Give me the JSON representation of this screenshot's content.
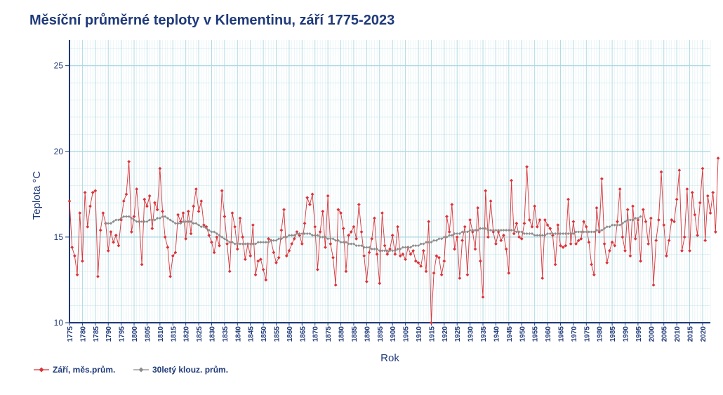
{
  "chart_data": {
    "type": "line",
    "title": "Měsíční průměrné teploty v Klementinu, září 1775-2023",
    "xlabel": "Rok",
    "ylabel": "Teplota °C",
    "xlim": [
      1775,
      2023
    ],
    "ylim": [
      10,
      26.5
    ],
    "y_ticks": [
      10,
      15,
      20,
      25
    ],
    "x_ticks_step": 5,
    "grid": true,
    "legend_position": "bottom-left",
    "colors": {
      "title": "#1f3a7a",
      "axis": "#1f3a7a",
      "grid": "#a9d7df",
      "series1": "#d9343a",
      "series2": "#8c8c8c"
    },
    "series": [
      {
        "name": "Září, měs.prům.",
        "start_year": 1775,
        "values": [
          17.1,
          14.4,
          13.9,
          12.8,
          16.4,
          13.6,
          17.6,
          15.6,
          16.8,
          17.6,
          17.7,
          12.7,
          15.4,
          16.4,
          15.8,
          14.2,
          15.3,
          14.7,
          15.1,
          14.5,
          16.0,
          17.1,
          17.5,
          19.4,
          15.3,
          16.2,
          17.8,
          15.9,
          13.4,
          17.2,
          16.8,
          17.4,
          15.5,
          17.0,
          16.6,
          19.0,
          16.5,
          15.0,
          14.4,
          12.7,
          13.9,
          14.1,
          16.3,
          15.9,
          16.4,
          14.9,
          16.5,
          15.2,
          16.8,
          17.8,
          16.5,
          17.1,
          15.7,
          15.6,
          15.1,
          14.7,
          14.1,
          15.0,
          14.5,
          17.7,
          16.2,
          14.6,
          13.0,
          16.4,
          15.6,
          14.3,
          16.1,
          15.0,
          13.7,
          14.6,
          13.9,
          15.7,
          12.8,
          13.6,
          13.7,
          13.1,
          12.5,
          14.9,
          14.8,
          14.1,
          13.5,
          13.8,
          15.4,
          16.6,
          13.9,
          14.2,
          14.6,
          14.9,
          15.3,
          15.1,
          14.6,
          15.8,
          17.3,
          16.9,
          17.5,
          15.6,
          13.1,
          15.3,
          16.5,
          14.4,
          17.4,
          14.6,
          13.8,
          12.2,
          16.6,
          16.4,
          15.5,
          13.0,
          15.1,
          15.3,
          15.6,
          14.9,
          16.9,
          15.3,
          13.9,
          12.4,
          14.1,
          14.9,
          16.1,
          14.0,
          12.3,
          16.4,
          14.5,
          14.0,
          14.3,
          15.1,
          14.0,
          15.6,
          13.9,
          14.0,
          13.7,
          14.4,
          14.0,
          14.2,
          13.6,
          13.5,
          13.3,
          14.2,
          13.0,
          15.9,
          10.0,
          12.9,
          13.9,
          13.8,
          12.8,
          13.6,
          16.2,
          15.3,
          16.9,
          14.3,
          15.0,
          12.6,
          14.8,
          15.6,
          12.8,
          16.0,
          15.3,
          14.3,
          16.7,
          13.6,
          11.5,
          17.7,
          15.0,
          17.1,
          15.3,
          14.6,
          15.3,
          14.8,
          15.1,
          14.3,
          12.9,
          18.3,
          15.2,
          15.8,
          15.0,
          14.9,
          15.8,
          19.1,
          16.0,
          15.6,
          16.8,
          15.6,
          16.0,
          12.6,
          16.0,
          15.7,
          15.5,
          15.1,
          13.4,
          15.7,
          14.5,
          14.4,
          14.5,
          17.2,
          14.6,
          15.9,
          14.6,
          14.8,
          14.9,
          15.9,
          15.6,
          14.7,
          13.4,
          12.8,
          16.7,
          15.3,
          18.4,
          14.6,
          13.5,
          14.2,
          14.7,
          14.5,
          15.9,
          17.8,
          15.0,
          14.2,
          16.6,
          13.9,
          16.8,
          14.9,
          16.0,
          13.6,
          16.6,
          15.9,
          14.6,
          16.1,
          12.2,
          14.8,
          16.0,
          18.8,
          15.7,
          13.9,
          14.8,
          16.0,
          15.9,
          17.2,
          18.9,
          14.2,
          15.0,
          17.8,
          14.2,
          17.6,
          16.3,
          15.1,
          17.0,
          19.0,
          14.8,
          17.4,
          16.4,
          17.6,
          15.3,
          19.6
        ]
      },
      {
        "name": "30letý klouz. prům.",
        "start_year": 1789,
        "values": [
          15.8,
          15.8,
          15.8,
          15.9,
          16.0,
          16.0,
          16.1,
          16.2,
          16.2,
          16.2,
          16.1,
          16.0,
          15.9,
          15.9,
          15.9,
          15.9,
          15.9,
          16.0,
          16.0,
          16.0,
          16.1,
          16.1,
          16.2,
          16.2,
          16.1,
          16.0,
          15.9,
          15.8,
          15.8,
          15.8,
          15.9,
          15.9,
          15.9,
          15.9,
          15.8,
          15.8,
          15.7,
          15.6,
          15.6,
          15.5,
          15.4,
          15.3,
          15.3,
          15.2,
          15.1,
          15.0,
          14.9,
          14.8,
          14.7,
          14.7,
          14.6,
          14.6,
          14.6,
          14.6,
          14.6,
          14.6,
          14.6,
          14.6,
          14.6,
          14.7,
          14.7,
          14.7,
          14.7,
          14.7,
          14.8,
          14.8,
          14.8,
          14.9,
          14.9,
          15.0,
          15.0,
          15.1,
          15.1,
          15.1,
          15.2,
          15.2,
          15.2,
          15.2,
          15.2,
          15.2,
          15.1,
          15.1,
          15.1,
          15.0,
          15.0,
          15.0,
          14.9,
          14.9,
          14.9,
          14.8,
          14.8,
          14.7,
          14.7,
          14.7,
          14.6,
          14.6,
          14.6,
          14.5,
          14.5,
          14.5,
          14.4,
          14.4,
          14.4,
          14.3,
          14.3,
          14.3,
          14.2,
          14.2,
          14.2,
          14.2,
          14.2,
          14.2,
          14.2,
          14.3,
          14.3,
          14.4,
          14.4,
          14.4,
          14.4,
          14.5,
          14.5,
          14.5,
          14.6,
          14.6,
          14.7,
          14.7,
          14.7,
          14.8,
          14.8,
          14.9,
          14.9,
          15.0,
          15.0,
          15.1,
          15.1,
          15.2,
          15.2,
          15.2,
          15.3,
          15.3,
          15.3,
          15.4,
          15.4,
          15.4,
          15.4,
          15.5,
          15.5,
          15.5,
          15.4,
          15.4,
          15.4,
          15.4,
          15.4,
          15.4,
          15.4,
          15.4,
          15.4,
          15.4,
          15.4,
          15.3,
          15.3,
          15.3,
          15.2,
          15.2,
          15.2,
          15.2,
          15.1,
          15.1,
          15.1,
          15.1,
          15.1,
          15.2,
          15.2,
          15.2,
          15.2,
          15.2,
          15.2,
          15.2,
          15.2,
          15.2,
          15.2,
          15.2,
          15.3,
          15.3,
          15.3,
          15.3,
          15.3,
          15.3,
          15.3,
          15.3,
          15.4,
          15.4,
          15.4,
          15.5,
          15.6,
          15.6,
          15.7,
          15.7,
          15.7,
          15.7,
          15.8,
          15.9,
          16.0,
          16.0,
          16.0,
          16.1,
          16.1,
          16.2
        ]
      }
    ]
  }
}
